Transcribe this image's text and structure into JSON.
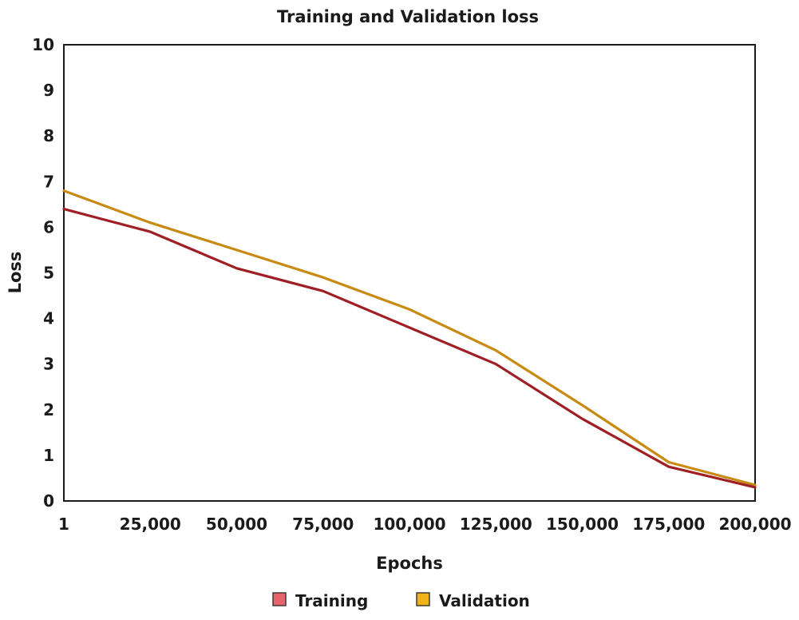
{
  "chart_data": {
    "type": "line",
    "title": "Training and Validation loss",
    "xlabel": "Epochs",
    "ylabel": "Loss",
    "categories": [
      "1",
      "25,000",
      "50,000",
      "75,000",
      "100,000",
      "125,000",
      "150,000",
      "175,000",
      "200,000"
    ],
    "x": [
      1,
      25000,
      50000,
      75000,
      100000,
      125000,
      150000,
      175000,
      200000
    ],
    "ylim": [
      0,
      10
    ],
    "yticks": [
      "0",
      "1",
      "2",
      "3",
      "4",
      "5",
      "6",
      "7",
      "8",
      "9",
      "10"
    ],
    "grid": false,
    "legend_position": "bottom",
    "series": [
      {
        "name": "Training",
        "color": "#9e1f24",
        "marker_color": "#e8636b",
        "values": [
          6.4,
          5.9,
          5.1,
          4.6,
          3.8,
          3.0,
          1.8,
          0.75,
          0.3
        ]
      },
      {
        "name": "Validation",
        "color": "#c88a12",
        "marker_color": "#f2b318",
        "values": [
          6.8,
          6.1,
          5.5,
          4.9,
          4.2,
          3.3,
          2.1,
          0.85,
          0.35
        ]
      }
    ]
  }
}
